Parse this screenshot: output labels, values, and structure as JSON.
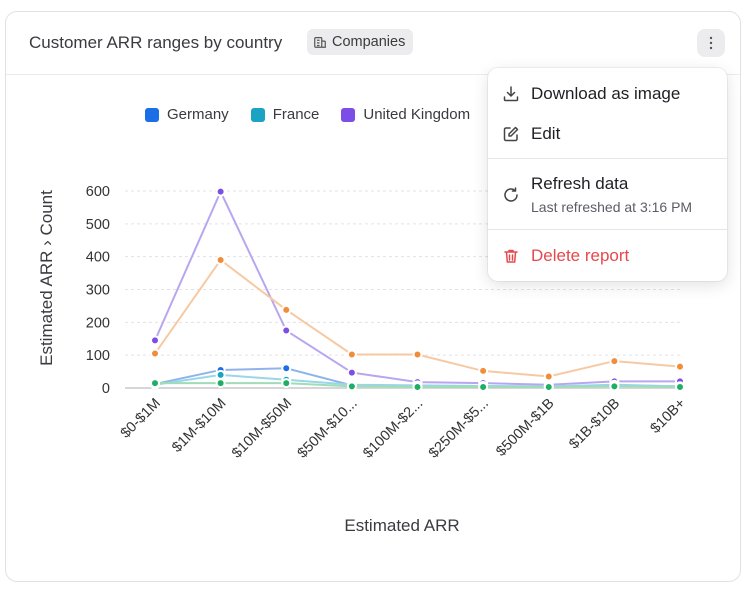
{
  "card": {
    "title": "Customer ARR ranges by country",
    "badge_label": "Companies"
  },
  "legend": [
    {
      "label": "Germany",
      "color": "#1a6ee6"
    },
    {
      "label": "France",
      "color": "#1aa3c2"
    },
    {
      "label": "United Kingdom",
      "color": "#7c4ee6"
    }
  ],
  "menu": {
    "download_label": "Download as image",
    "edit_label": "Edit",
    "refresh_label": "Refresh data",
    "refresh_sub": "Last refreshed at 3:16 PM",
    "delete_label": "Delete report",
    "delete_color": "#e5484d"
  },
  "chart_data": {
    "type": "line",
    "xlabel": "Estimated ARR",
    "ylabel": "Estimated ARR",
    "ylabel_suffix": "Count",
    "categories": [
      "$0-$1M",
      "$1M-$10M",
      "$10M-$50M",
      "$50M-$10...",
      "$100M-$2...",
      "$250M-$5...",
      "$500M-$1B",
      "$1B-$10B",
      "$10B+"
    ],
    "ylim": [
      0,
      600
    ],
    "yticks": [
      0,
      100,
      200,
      300,
      400,
      500,
      600
    ],
    "grid": true,
    "series": [
      {
        "color": "#b9a6f0",
        "dot": "#7c4ee6",
        "values": [
          145,
          598,
          175,
          47,
          18,
          15,
          10,
          20,
          20
        ]
      },
      {
        "color": "#f7c9a3",
        "dot": "#f28c38",
        "values": [
          105,
          390,
          238,
          102,
          102,
          52,
          35,
          82,
          65
        ]
      },
      {
        "color": "#8fb4ec",
        "dot": "#1a6ee6",
        "values": [
          12,
          55,
          60,
          8,
          5,
          5,
          5,
          8,
          5
        ]
      },
      {
        "color": "#9ad6e6",
        "dot": "#1aa3c2",
        "values": [
          10,
          40,
          25,
          10,
          8,
          6,
          5,
          10,
          5
        ]
      },
      {
        "color": "#9fdcb8",
        "dot": "#1fae66",
        "values": [
          15,
          15,
          15,
          5,
          3,
          3,
          3,
          5,
          3
        ]
      }
    ]
  }
}
